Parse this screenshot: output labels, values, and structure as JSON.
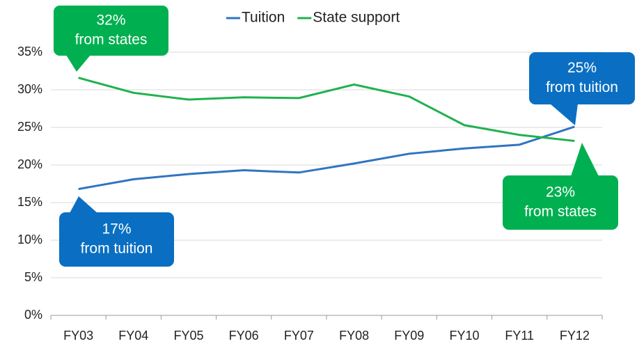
{
  "chart_data": {
    "type": "line",
    "categories": [
      "FY03",
      "FY04",
      "FY05",
      "FY06",
      "FY07",
      "FY08",
      "FY09",
      "FY10",
      "FY11",
      "FY12"
    ],
    "series": [
      {
        "name": "Tuition",
        "color": "#2e75c0",
        "values": [
          16.8,
          18.1,
          18.8,
          19.3,
          19.0,
          20.2,
          21.5,
          22.2,
          22.7,
          25.1
        ]
      },
      {
        "name": "State support",
        "color": "#1fb14f",
        "values": [
          31.6,
          29.6,
          28.7,
          29.0,
          28.9,
          30.7,
          29.1,
          25.3,
          24.0,
          23.2
        ]
      }
    ],
    "ylim": [
      0,
      35
    ],
    "yticks": [
      {
        "value": 0,
        "label": "0%"
      },
      {
        "value": 5,
        "label": "5%"
      },
      {
        "value": 10,
        "label": "10%"
      },
      {
        "value": 15,
        "label": "15%"
      },
      {
        "value": 20,
        "label": "20%"
      },
      {
        "value": 25,
        "label": "25%"
      },
      {
        "value": 30,
        "label": "30%"
      },
      {
        "value": 35,
        "label": "35%"
      }
    ],
    "grid": true,
    "legend": "top",
    "annotations": [
      {
        "lines": [
          "32%",
          "from states"
        ],
        "color": "#00b050"
      },
      {
        "lines": [
          "25%",
          "from tuition"
        ],
        "color": "#0a6fc2"
      },
      {
        "lines": [
          "17%",
          "from tuition"
        ],
        "color": "#0a6fc2"
      },
      {
        "lines": [
          "23%",
          "from states"
        ],
        "color": "#00b050"
      }
    ]
  }
}
